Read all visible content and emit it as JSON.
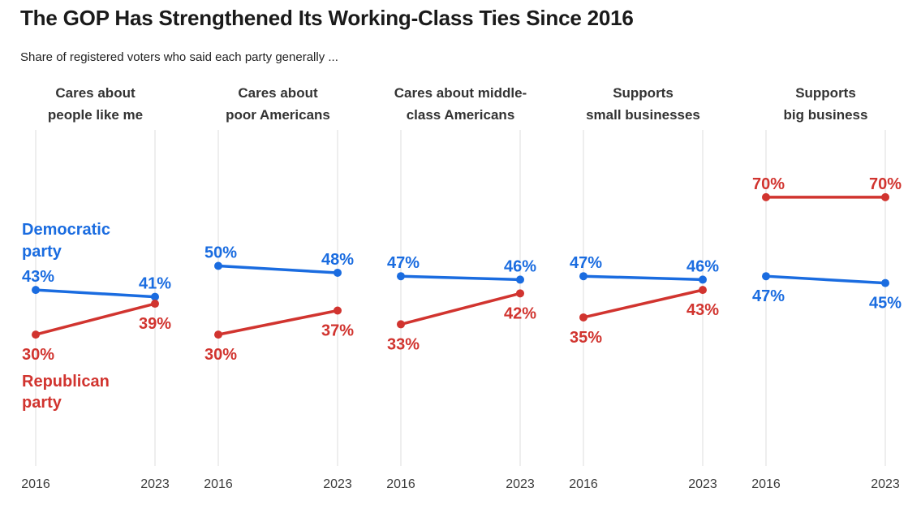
{
  "header": {
    "title": "The GOP Has Strengthened Its Working-Class Ties Since 2016",
    "subtitle": "Share of registered voters who said each party generally ..."
  },
  "colors": {
    "democrat": "#1a6ce0",
    "republican": "#d1342f",
    "gridline": "#dcdcdc"
  },
  "legend": {
    "democrat_lines": [
      "Democratic",
      "party"
    ],
    "republican_lines": [
      "Republican",
      "party"
    ]
  },
  "chart_data": {
    "type": "line",
    "x": [
      2016,
      2023
    ],
    "x_tick_labels": [
      "2016",
      "2023"
    ],
    "y_axis": "hidden",
    "grid": "vertical-only",
    "value_suffix": "%",
    "legend_position": "first-panel-inline",
    "series_names": [
      "Democratic party",
      "Republican party"
    ],
    "panels": [
      {
        "title_lines": [
          "Cares about",
          "people like me"
        ],
        "series": [
          {
            "name": "Democratic party",
            "key": "democrat",
            "values": [
              43,
              41
            ]
          },
          {
            "name": "Republican party",
            "key": "republican",
            "values": [
              30,
              39
            ]
          }
        ],
        "show_party_labels": true
      },
      {
        "title_lines": [
          "Cares about",
          "poor Americans"
        ],
        "series": [
          {
            "name": "Democratic party",
            "key": "democrat",
            "values": [
              50,
              48
            ]
          },
          {
            "name": "Republican party",
            "key": "republican",
            "values": [
              30,
              37
            ]
          }
        ],
        "show_party_labels": false
      },
      {
        "title_lines": [
          "Cares about middle-",
          "class Americans"
        ],
        "series": [
          {
            "name": "Democratic party",
            "key": "democrat",
            "values": [
              47,
              46
            ]
          },
          {
            "name": "Republican party",
            "key": "republican",
            "values": [
              33,
              42
            ]
          }
        ],
        "show_party_labels": false
      },
      {
        "title_lines": [
          "Supports",
          "small businesses"
        ],
        "series": [
          {
            "name": "Democratic party",
            "key": "democrat",
            "values": [
              47,
              46
            ]
          },
          {
            "name": "Republican party",
            "key": "republican",
            "values": [
              35,
              43
            ]
          }
        ],
        "show_party_labels": false
      },
      {
        "title_lines": [
          "Supports",
          "big business"
        ],
        "series": [
          {
            "name": "Democratic party",
            "key": "democrat",
            "values": [
              47,
              45
            ]
          },
          {
            "name": "Republican party",
            "key": "republican",
            "values": [
              70,
              70
            ]
          }
        ],
        "show_party_labels": false
      }
    ]
  }
}
